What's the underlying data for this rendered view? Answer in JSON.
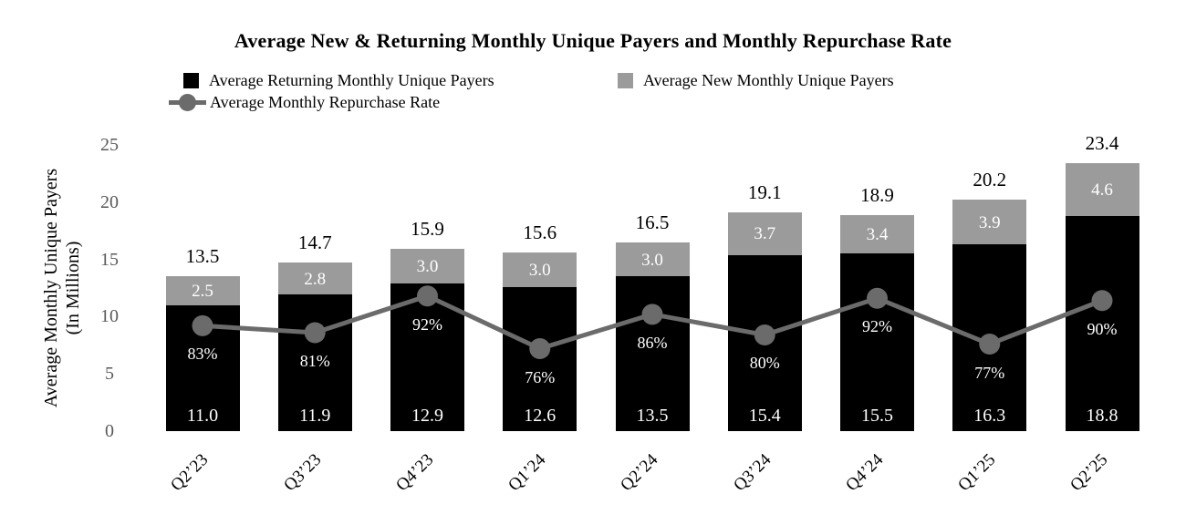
{
  "chart_data": {
    "type": "bar",
    "stacked": true,
    "title": "Average New & Returning Monthly Unique Payers and Monthly Repurchase Rate",
    "categories": [
      "Q2’23",
      "Q3’23",
      "Q4’23",
      "Q1’24",
      "Q2’24",
      "Q3’24",
      "Q4’24",
      "Q1’25",
      "Q2’25"
    ],
    "series": [
      {
        "name": "Average Returning Monthly Unique Payers",
        "color": "#000000",
        "values": [
          11.0,
          11.9,
          12.9,
          12.6,
          13.5,
          15.4,
          15.5,
          16.3,
          18.8
        ],
        "labels": [
          "11.0",
          "11.9",
          "12.9",
          "12.6",
          "13.5",
          "15.4",
          "15.5",
          "16.3",
          "18.8"
        ]
      },
      {
        "name": "Average New Monthly Unique Payers",
        "color": "#9b9b9b",
        "values": [
          2.5,
          2.8,
          3.0,
          3.0,
          3.0,
          3.7,
          3.4,
          3.9,
          4.6
        ],
        "labels": [
          "2.5",
          "2.8",
          "3.0",
          "3.0",
          "3.0",
          "3.7",
          "3.4",
          "3.9",
          "4.6"
        ]
      }
    ],
    "totals_labels": [
      "13.5",
      "14.7",
      "15.9",
      "15.6",
      "16.5",
      "19.1",
      "18.9",
      "20.2",
      "23.4"
    ],
    "line": {
      "name": "Average Monthly Repurchase Rate",
      "color": "#6b6b6b",
      "values_pct": [
        83,
        81,
        92,
        76,
        86,
        80,
        92,
        77,
        90
      ],
      "labels": [
        "83%",
        "81%",
        "92%",
        "76%",
        "86%",
        "80%",
        "92%",
        "77%",
        "90%"
      ],
      "plotted_y_in_millions": [
        9.2,
        8.6,
        11.8,
        7.2,
        10.2,
        8.4,
        11.6,
        7.6,
        11.4
      ]
    },
    "ylabel": "Average Monthly Unique Payers",
    "ylabel_sub": "(In Millions)",
    "yticks": [
      "0",
      "5",
      "10",
      "15",
      "20",
      "25"
    ],
    "ytick_values": [
      0,
      5,
      10,
      15,
      20,
      25
    ],
    "ylim": [
      0,
      25
    ],
    "grid": false,
    "axes_lines": false,
    "legend_position": "top-left",
    "tick_color": "#595959",
    "background": "#ffffff"
  }
}
